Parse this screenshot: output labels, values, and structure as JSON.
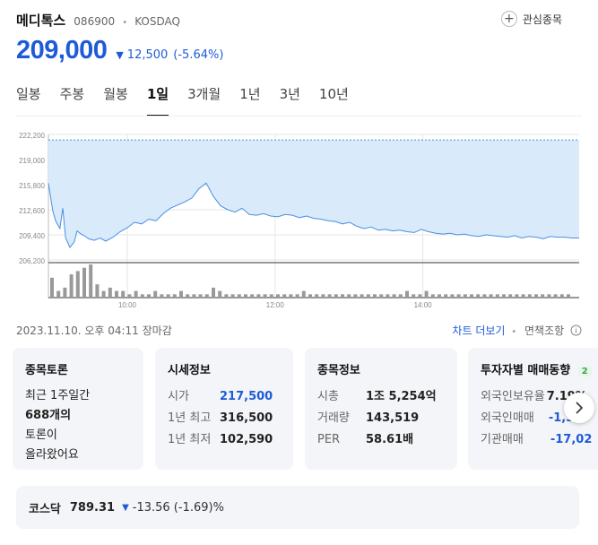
{
  "header": {
    "name": "메디톡스",
    "code": "086900",
    "separator": "•",
    "market": "KOSDAQ",
    "watch_label": "관심종목",
    "watch_icon": "plus-icon"
  },
  "quote": {
    "price": "209,000",
    "direction_icon": "down-triangle-icon",
    "change": "12,500",
    "change_pct": "(-5.64%)",
    "color": "#1e5bd8"
  },
  "tabs": [
    {
      "label": "일봉",
      "active": false
    },
    {
      "label": "주봉",
      "active": false
    },
    {
      "label": "월봉",
      "active": false
    },
    {
      "label": "1일",
      "active": true
    },
    {
      "label": "3개월",
      "active": false
    },
    {
      "label": "1년",
      "active": false
    },
    {
      "label": "3년",
      "active": false
    },
    {
      "label": "10년",
      "active": false
    }
  ],
  "chart_data": {
    "type": "area",
    "y_ticks": [
      "222,200",
      "219,000",
      "215,800",
      "212,600",
      "209,400",
      "206,200"
    ],
    "ylim": [
      206200,
      222200
    ],
    "x_ticks": [
      "10:00",
      "12:00",
      "14:00"
    ],
    "reference_price": 221500,
    "x": [
      0,
      3,
      5,
      8,
      10,
      12,
      15,
      18,
      20,
      22,
      25,
      28,
      32,
      36,
      40,
      45,
      50,
      55,
      60,
      65,
      70,
      75,
      80,
      85,
      90,
      95,
      100,
      105,
      110,
      115,
      120,
      125,
      130,
      135,
      140,
      145,
      150,
      155,
      160,
      165,
      170,
      175,
      180,
      185,
      190,
      195,
      200,
      205,
      210,
      215,
      220,
      225,
      230,
      235,
      240,
      245,
      250,
      255,
      260,
      265,
      270,
      275,
      280,
      285,
      290,
      295,
      300,
      305,
      310,
      315,
      320,
      325,
      330,
      335,
      340,
      345,
      350,
      355,
      360,
      365,
      370
    ],
    "values": [
      216000,
      212500,
      211200,
      210200,
      212800,
      209000,
      207800,
      208500,
      209900,
      209600,
      209300,
      208900,
      208700,
      209000,
      208600,
      209100,
      209800,
      210300,
      211000,
      210800,
      211400,
      211200,
      212100,
      212800,
      213200,
      213600,
      214100,
      215300,
      216000,
      214300,
      213100,
      212600,
      212300,
      212800,
      212000,
      211900,
      212100,
      211800,
      211700,
      212000,
      211900,
      211600,
      211800,
      211500,
      211400,
      211200,
      211100,
      210800,
      211000,
      210500,
      210200,
      210400,
      210000,
      210100,
      209900,
      210000,
      209800,
      209700,
      210100,
      209800,
      209600,
      209500,
      209600,
      209400,
      209500,
      209300,
      209200,
      209400,
      209300,
      209200,
      209100,
      209300,
      209000,
      209200,
      209100,
      208900,
      209200,
      209100,
      209100,
      209000,
      209000
    ],
    "volume": [
      6,
      2,
      3,
      7,
      8,
      9,
      10,
      4,
      2,
      3,
      2,
      2,
      1,
      2,
      1,
      1,
      2,
      1,
      1,
      1,
      2,
      1,
      1,
      1,
      1,
      3,
      2,
      1,
      1,
      1,
      1,
      1,
      1,
      1,
      1,
      1,
      1,
      1,
      1,
      2,
      1,
      1,
      1,
      1,
      1,
      1,
      1,
      1,
      1,
      1,
      1,
      1,
      1,
      1,
      1,
      2,
      1,
      1,
      2,
      1,
      1,
      1,
      1,
      1,
      1,
      1,
      1,
      1,
      1,
      1,
      1,
      1,
      1,
      1,
      1,
      1,
      1,
      1,
      1,
      1,
      1
    ],
    "line_color": "#4a8fe0",
    "fill_color": "#d9ebfb",
    "grid": true
  },
  "status": {
    "timestamp": "2023.11.10. 오후 04:11 장마감",
    "chart_more": "차트 더보기",
    "separator": "•",
    "disclaimer": "면책조항",
    "disclaimer_icon": "info-icon"
  },
  "cards": {
    "discussion": {
      "title": "종목토론",
      "line1": "최근 1주일간",
      "count": "688개의",
      "line3": "토론이",
      "line4": "올라왔어요"
    },
    "market_info": {
      "title": "시세정보",
      "rows": [
        {
          "k": "시가",
          "v": "217,500",
          "blue": true
        },
        {
          "k": "1년 최고",
          "v": "316,500",
          "blue": false
        },
        {
          "k": "1년 최저",
          "v": "102,590",
          "blue": false
        }
      ]
    },
    "stock_info": {
      "title": "종목정보",
      "rows": [
        {
          "k": "시총",
          "v": "1조 5,254억"
        },
        {
          "k": "거래량",
          "v": "143,519"
        },
        {
          "k": "PER",
          "v": "58.61배"
        }
      ]
    },
    "investor": {
      "title": "투자자별 매매동향",
      "badge": "2",
      "rows": [
        {
          "k": "외국인보유율",
          "v": "7.19%"
        },
        {
          "k": "외국인매매",
          "v": "-1,3"
        },
        {
          "k": "기관매매",
          "v": "-17,02"
        }
      ]
    },
    "next_icon": "chevron-right-icon"
  },
  "index_bar": {
    "label": "코스닥",
    "value": "789.31",
    "direction_icon": "down-triangle-icon",
    "change": "-13.56 (-1.69)%"
  }
}
